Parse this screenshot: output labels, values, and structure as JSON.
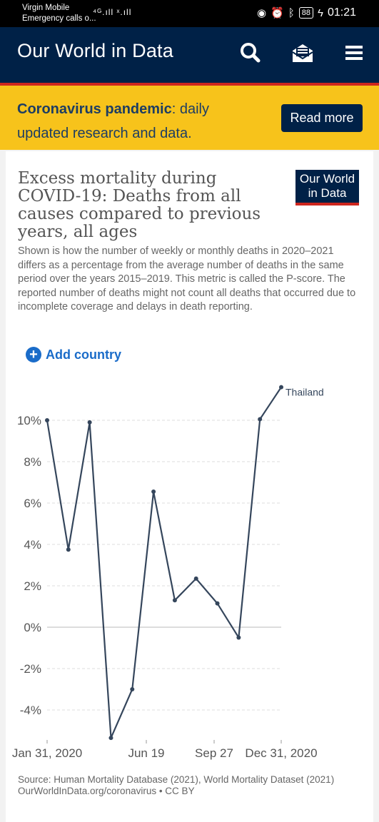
{
  "status_bar": {
    "carrier": "Virgin Mobile",
    "emergency": "Emergency calls o...",
    "network_icons": "⁴ᴳ.ıll ˣ.ıll",
    "battery": "88",
    "time": "01:21"
  },
  "header": {
    "title": "Our World in Data",
    "icons": [
      "search-icon",
      "newsletter-icon",
      "menu-icon"
    ]
  },
  "banner": {
    "bold": "Coronavirus pandemic",
    "rest": ": daily updated research and data.",
    "button": "Read more"
  },
  "chart": {
    "title": "Excess mortality during COVID-19: Deaths from all causes compared to previous years, all ages",
    "logo": "Our World in Data",
    "subtitle": "Shown is how the number of weekly or monthly deaths in 2020–2021 differs as a percentage from the average number of deaths in the same period over the years 2015–2019. This metric is called the P-score. The reported number of deaths might not count all deaths that occurred due to incomplete coverage and delays in death reporting.",
    "add_country": "Add country",
    "source_line1": "Source: Human Mortality Database (2021), World Mortality Dataset (2021)",
    "source_line2": "OurWorldInData.org/coronavirus • CC BY"
  },
  "chart_data": {
    "type": "line",
    "series": [
      {
        "name": "Thailand",
        "x": [
          "Jan 31, 2020",
          "Feb 29, 2020",
          "Mar 31, 2020",
          "Apr 30, 2020",
          "May 31, 2020",
          "Jun 30, 2020",
          "Jul 31, 2020",
          "Aug 31, 2020",
          "Sep 30, 2020",
          "Oct 31, 2020",
          "Nov 30, 2020",
          "Dec 31, 2020"
        ],
        "values": [
          10.0,
          3.75,
          9.9,
          -5.35,
          -3.0,
          6.55,
          1.3,
          2.35,
          1.15,
          -0.5,
          10.05,
          11.6
        ]
      }
    ],
    "x_ticks": [
      "Jan 31, 2020",
      "Jun 19",
      "Sep 27",
      "Dec 31, 2020"
    ],
    "y_ticks": [
      "-4%",
      "-2%",
      "0%",
      "2%",
      "4%",
      "6%",
      "8%",
      "10%"
    ],
    "ylim": [
      -5.35,
      11.6
    ],
    "grid": true,
    "colors": {
      "line": "#35465c",
      "grid": "#dddddd",
      "zero": "#bbbbbb",
      "label": "#555555"
    }
  }
}
